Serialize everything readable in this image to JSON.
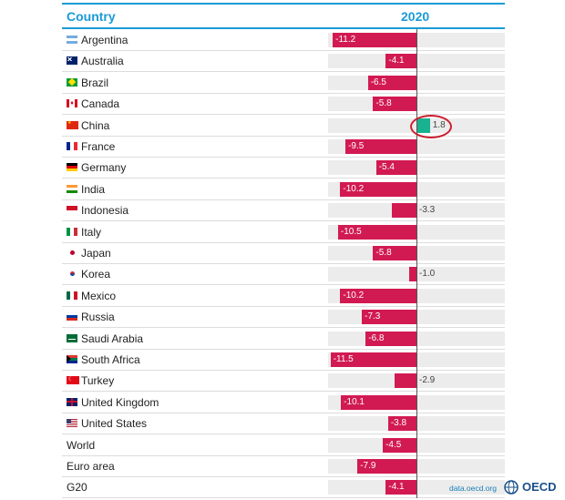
{
  "header": {
    "country_label": "Country",
    "year_label": "2020"
  },
  "source_text": "data.oecd.org",
  "logo_text": "OECD",
  "colors": {
    "negative": "#d21a52",
    "positive": "#19b28f",
    "accent": "#1a9bd7",
    "highlight": "#cc1f2e"
  },
  "chart_data": {
    "type": "bar",
    "orientation": "horizontal",
    "title": "",
    "xlabel": "",
    "ylabel": "",
    "series": [
      {
        "name": "2020",
        "values": [
          -11.2,
          -4.1,
          -6.5,
          -5.8,
          1.8,
          -9.5,
          -5.4,
          -10.2,
          -3.3,
          -10.5,
          -5.8,
          -1.0,
          -10.2,
          -7.3,
          -6.8,
          -11.5,
          -2.9,
          -10.1,
          -3.8,
          -4.5,
          -7.9,
          -4.1
        ]
      }
    ],
    "categories": [
      "Argentina",
      "Australia",
      "Brazil",
      "Canada",
      "China",
      "France",
      "Germany",
      "India",
      "Indonesia",
      "Italy",
      "Japan",
      "Korea",
      "Mexico",
      "Russia",
      "Saudi Arabia",
      "South Africa",
      "Turkey",
      "United Kingdom",
      "United States",
      "World",
      "Euro area",
      "G20"
    ],
    "value_labels": [
      "-11.2",
      "-4.1",
      "-6.5",
      "-5.8",
      "1.8",
      "-9.5",
      "-5.4",
      "-10.2",
      "-3.3",
      "-10.5",
      "-5.8",
      "-1.0",
      "-10.2",
      "-7.3",
      "-6.8",
      "-11.5",
      "-2.9",
      "-10.1",
      "-3.8",
      "-4.5",
      "-7.9",
      "-4.1"
    ],
    "flags": [
      "argentina-flag-icon",
      "australia-flag-icon",
      "brazil-flag-icon",
      "canada-flag-icon",
      "china-flag-icon",
      "france-flag-icon",
      "germany-flag-icon",
      "india-flag-icon",
      "indonesia-flag-icon",
      "italy-flag-icon",
      "japan-flag-icon",
      "korea-flag-icon",
      "mexico-flag-icon",
      "russia-flag-icon",
      "saudi-arabia-flag-icon",
      "south-africa-flag-icon",
      "turkey-flag-icon",
      "united-kingdom-flag-icon",
      "united-states-flag-icon",
      null,
      null,
      null
    ],
    "highlighted_category": "China",
    "xlim": [
      -12.0,
      4.0
    ],
    "grid": false,
    "legend": "none"
  }
}
